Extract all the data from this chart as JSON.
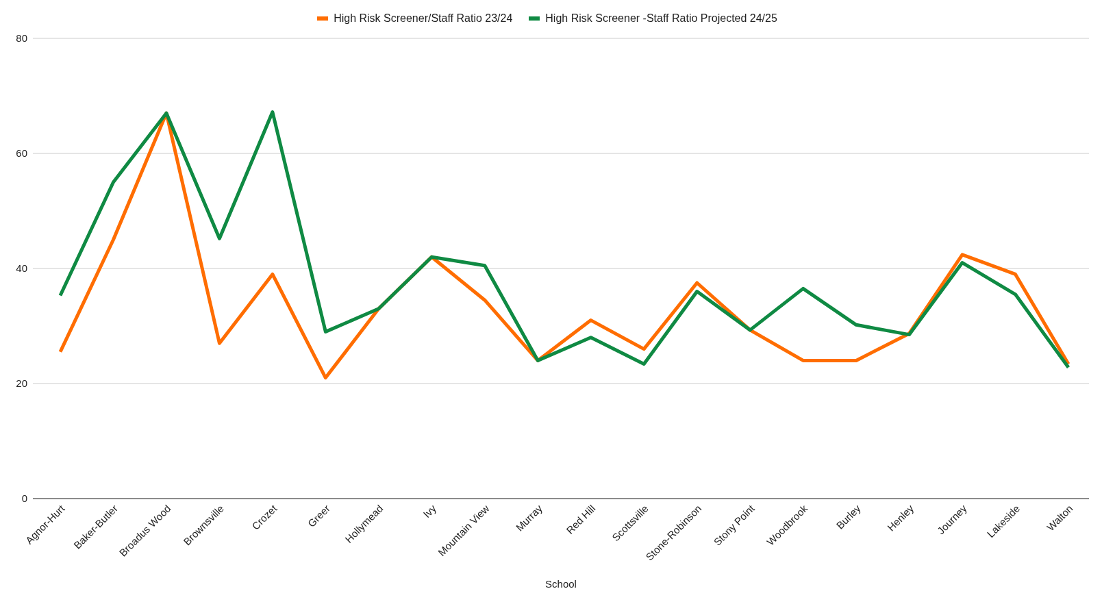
{
  "chart_data": {
    "type": "line",
    "xlabel": "School",
    "categories": [
      "Agnor-Hurt",
      "Baker-Butler",
      "Broadus Wood",
      "Brownsville",
      "Crozet",
      "Greer",
      "Hollymead",
      "Ivy",
      "Mountain View",
      "Murray",
      "Red Hill",
      "Scottsville",
      "Stone-Robinson",
      "Stony Point",
      "Woodbrook",
      "Burley",
      "Henley",
      "Journey",
      "Lakeside",
      "Walton"
    ],
    "series": [
      {
        "name": "High Risk Screener/Staff Ratio 23/24",
        "color": "#ff6d01",
        "values": [
          25.5,
          45,
          67,
          27,
          39,
          21,
          33,
          42,
          34.5,
          24,
          31,
          26,
          37.5,
          29.3,
          24,
          24,
          28.7,
          42.4,
          39,
          23.4
        ]
      },
      {
        "name": "High Risk Screener -Staff Ratio Projected 24/25",
        "color": "#0f8a43",
        "values": [
          35.3,
          55,
          67,
          45.2,
          67.2,
          29,
          33,
          42,
          40.5,
          24,
          28,
          23.4,
          36,
          29.3,
          36.5,
          30.2,
          28.5,
          41,
          35.5,
          22.8
        ]
      }
    ],
    "ylim": [
      0,
      80
    ],
    "yticks": [
      0,
      20,
      40,
      60,
      80
    ],
    "grid": "y",
    "legend": "top",
    "marker": "none",
    "line_style": "solid"
  }
}
